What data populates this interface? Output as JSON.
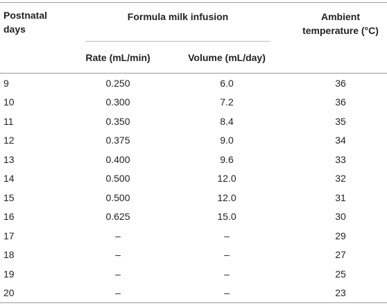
{
  "table": {
    "header": {
      "postnatal_days": "Postnatal days",
      "formula_milk_infusion": "Formula milk infusion",
      "rate": "Rate (mL/min)",
      "volume": "Volume (mL/day)",
      "ambient_temperature": "Ambient temperature (°C)"
    },
    "rows": [
      [
        "9",
        "0.250",
        "6.0",
        "36"
      ],
      [
        "10",
        "0.300",
        "7.2",
        "36"
      ],
      [
        "11",
        "0.350",
        "8.4",
        "35"
      ],
      [
        "12",
        "0.375",
        "9.0",
        "34"
      ],
      [
        "13",
        "0.400",
        "9.6",
        "33"
      ],
      [
        "14",
        "0.500",
        "12.0",
        "32"
      ],
      [
        "15",
        "0.500",
        "12.0",
        "31"
      ],
      [
        "16",
        "0.625",
        "15.0",
        "30"
      ],
      [
        "17",
        "–",
        "–",
        "29"
      ],
      [
        "18",
        "–",
        "–",
        "27"
      ],
      [
        "19",
        "–",
        "–",
        "25"
      ],
      [
        "20",
        "–",
        "–",
        "23"
      ]
    ]
  }
}
